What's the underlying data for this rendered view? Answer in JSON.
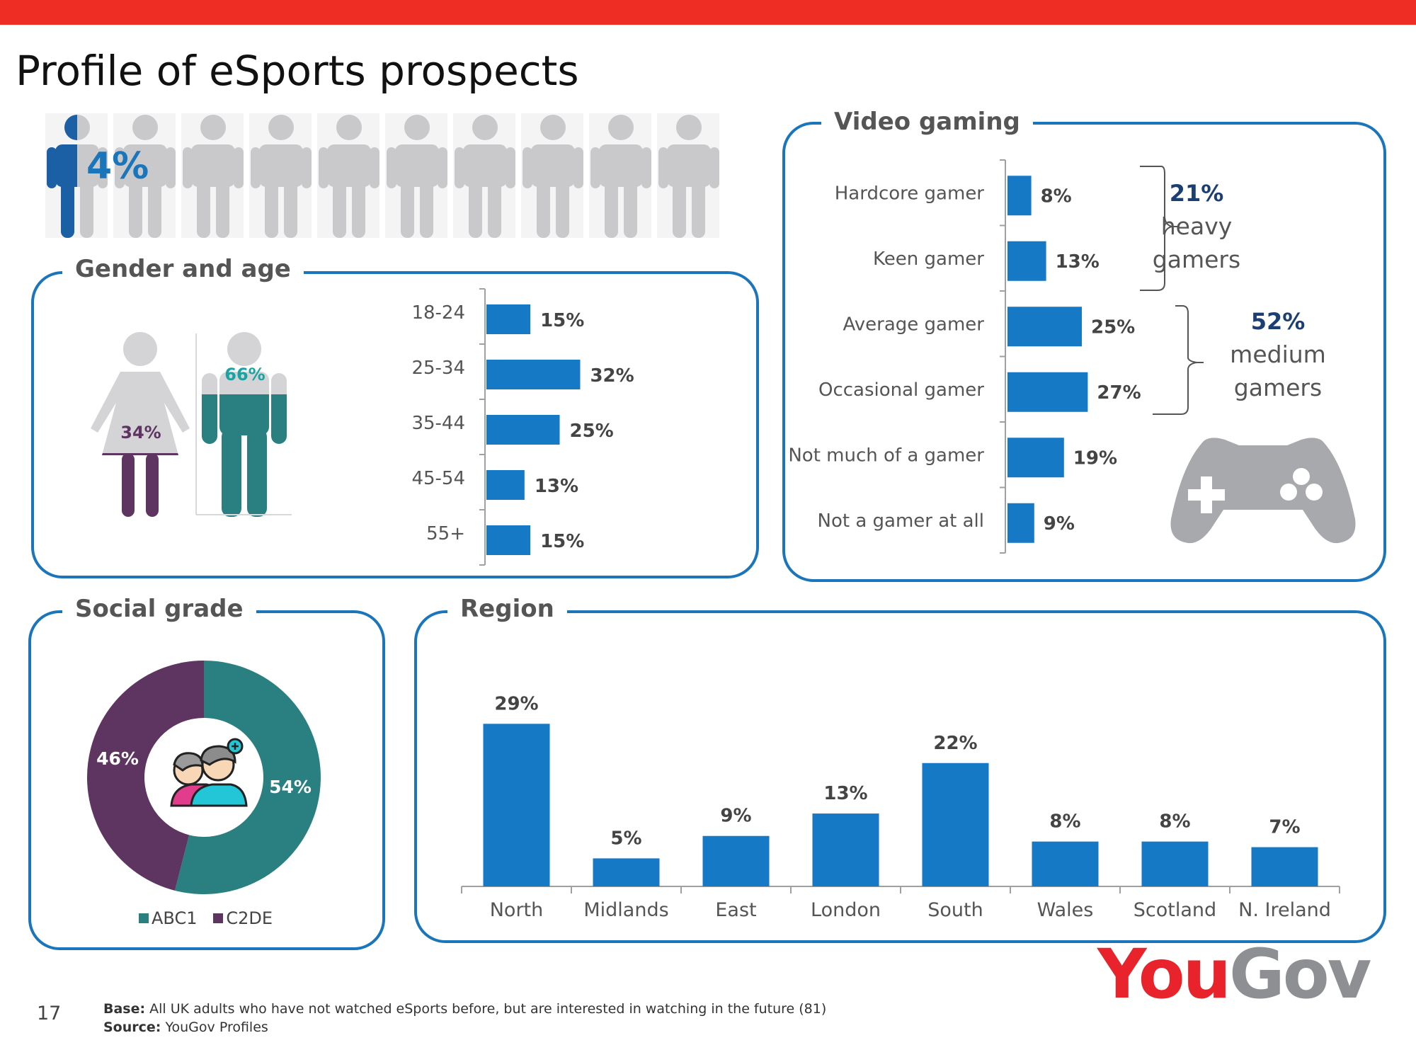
{
  "page": {
    "title": "Profile of eSports prospects",
    "page_number": "17",
    "base_label": "Base:",
    "base_text": "All UK adults who have not watched eSports before, but are interested in watching in the future (81)",
    "source_label": "Source:",
    "source_text": "YouGov Profiles",
    "logo": {
      "you": "You",
      "gov": "Gov"
    },
    "colors": {
      "topbar": "#ee2e24",
      "bar": "#1579c6",
      "teal": "#2a8080",
      "purple": "#5e3461",
      "panel_border": "#1b75bb"
    }
  },
  "headline": {
    "value": "4%",
    "filled_fraction": 0.04,
    "icon": "person-icon",
    "icon_count": 10
  },
  "gender": {
    "title": "Gender and age",
    "female_label": "34%",
    "female_fraction": 0.34,
    "male_label": "66%",
    "male_fraction": 0.66,
    "icons": [
      "woman-icon",
      "man-icon"
    ]
  },
  "social": {
    "title": "Social grade",
    "label_c2de": "46%",
    "label_abc1": "54%",
    "legend": [
      "ABC1",
      "C2DE"
    ],
    "center_icon": "people-icon"
  },
  "region": {
    "title": "Region"
  },
  "gaming": {
    "title": "Video gaming",
    "heavy_value": "21%",
    "heavy_l1": "heavy",
    "heavy_l2": "gamers",
    "medium_value": "52%",
    "medium_l1": "medium",
    "medium_l2": "gamers",
    "icon": "gamepad-icon"
  },
  "chart_data": [
    {
      "type": "bar",
      "orientation": "horizontal",
      "title": "Gender and age",
      "categories": [
        "18-24",
        "25-34",
        "35-44",
        "45-54",
        "55+"
      ],
      "values": [
        15,
        32,
        25,
        13,
        15
      ],
      "labels": [
        "15%",
        "32%",
        "25%",
        "13%",
        "15%"
      ]
    },
    {
      "type": "pie",
      "title": "Social grade",
      "categories": [
        "ABC1",
        "C2DE"
      ],
      "values": [
        54,
        46
      ],
      "labels": [
        "54%",
        "46%"
      ],
      "colors": [
        "#2a8080",
        "#5e3461"
      ],
      "legend": "bottom"
    },
    {
      "type": "bar",
      "title": "Region",
      "categories": [
        "North",
        "Midlands",
        "East",
        "London",
        "South",
        "Wales",
        "Scotland",
        "N. Ireland"
      ],
      "values": [
        29,
        5,
        9,
        13,
        22,
        8,
        8,
        7
      ],
      "labels": [
        "29%",
        "5%",
        "9%",
        "13%",
        "22%",
        "8%",
        "8%",
        "7%"
      ]
    },
    {
      "type": "bar",
      "orientation": "horizontal",
      "title": "Video gaming",
      "categories": [
        "Hardcore gamer",
        "Keen gamer",
        "Average gamer",
        "Occasional gamer",
        "Not much of a gamer",
        "Not a gamer at all"
      ],
      "values": [
        8,
        13,
        25,
        27,
        19,
        9
      ],
      "labels": [
        "8%",
        "13%",
        "25%",
        "27%",
        "19%",
        "9%"
      ]
    }
  ]
}
